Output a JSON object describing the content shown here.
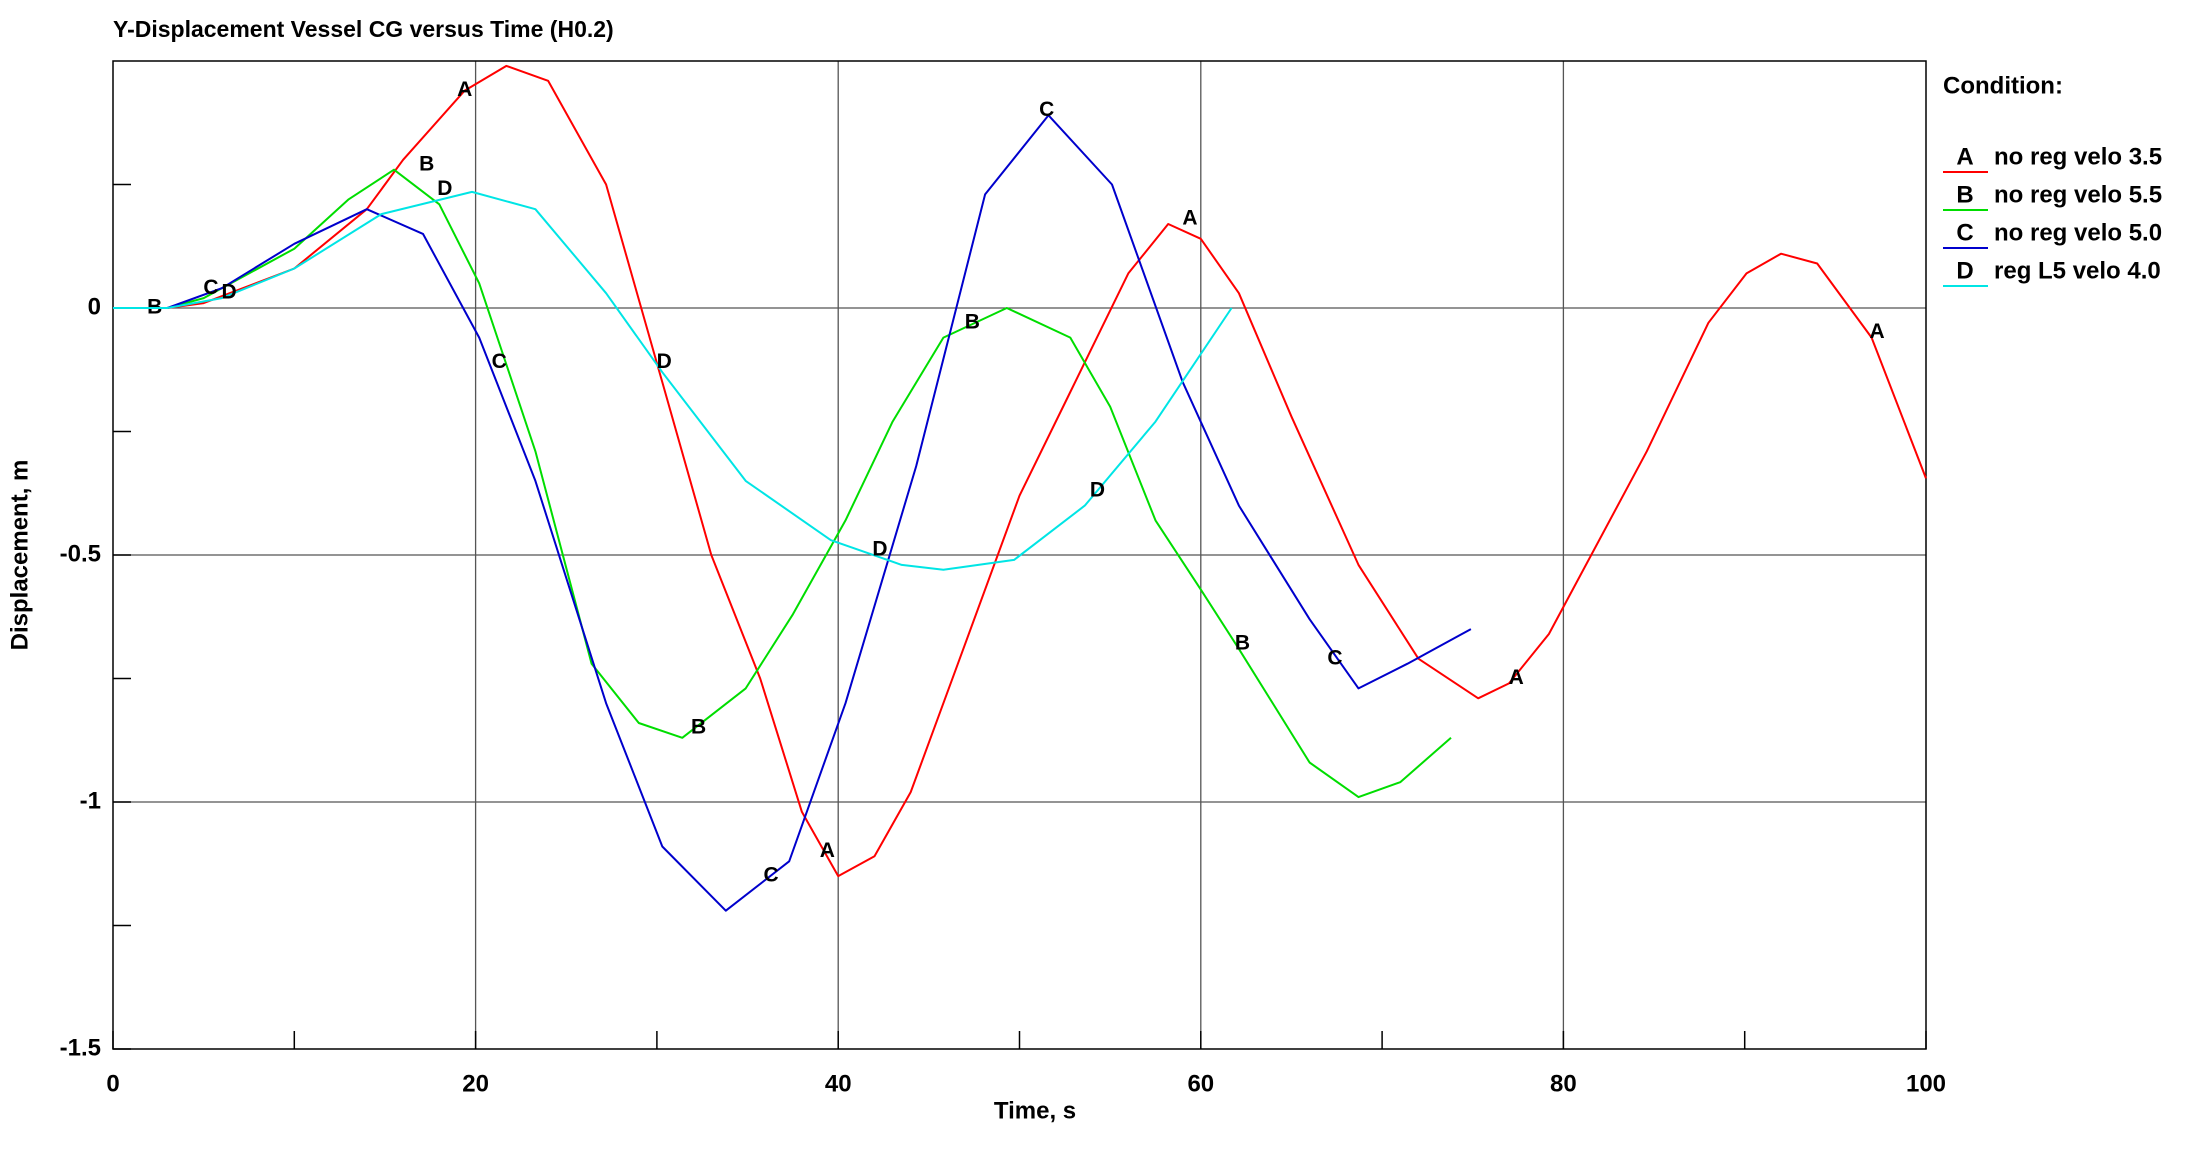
{
  "chart_data": {
    "type": "line",
    "title": "Y-Displacement Vessel CG versus Time (H0.2)",
    "x_label": "Time, s",
    "y_label": "Displacement, m",
    "legend_title": "Condition:",
    "xlim": [
      0,
      100
    ],
    "ylim": [
      -1.5,
      0.5
    ],
    "xticks": [
      0,
      20,
      40,
      60,
      80,
      100
    ],
    "yticks": [
      -1.5,
      -1,
      -0.5,
      0
    ],
    "xminor": [
      10,
      30,
      50,
      70,
      90
    ],
    "yminor": [
      -1.25,
      -0.75,
      -0.25,
      0.25
    ],
    "xgrid": [
      20,
      40,
      60,
      80
    ],
    "ygrid": [
      -1,
      -0.5,
      0
    ],
    "series": [
      {
        "name": "no reg velo 3.5",
        "letter": "A",
        "color": "#ff0000",
        "x": [
          0,
          3,
          5,
          10,
          14,
          16,
          19.4,
          21.7,
          24,
          27.2,
          30.3,
          33,
          35.7,
          38,
          40,
          42,
          44,
          46.6,
          50,
          52.8,
          56,
          58.2,
          60,
          62.1,
          65,
          68.7,
          72,
          75.3,
          77,
          79.2,
          84.6,
          88,
          90.1,
          92,
          94,
          97,
          100
        ],
        "values": [
          0,
          0,
          0.01,
          0.08,
          0.2,
          0.3,
          0.44,
          0.49,
          0.46,
          0.25,
          -0.15,
          -0.5,
          -0.75,
          -1.02,
          -1.15,
          -1.11,
          -0.98,
          -0.72,
          -0.38,
          -0.17,
          0.07,
          0.17,
          0.14,
          0.03,
          -0.22,
          -0.52,
          -0.71,
          -0.79,
          -0.76,
          -0.66,
          -0.29,
          -0.03,
          0.07,
          0.11,
          0.09,
          -0.06,
          -0.345
        ],
        "markers": [
          {
            "x": 19.4,
            "y": 0.44
          },
          {
            "x": 39.4,
            "y": -1.1
          },
          {
            "x": 59.4,
            "y": 0.18
          },
          {
            "x": 77.4,
            "y": -0.75
          },
          {
            "x": 97.3,
            "y": -0.05
          }
        ]
      },
      {
        "name": "no reg velo 5.5",
        "letter": "B",
        "color": "#00dd00",
        "x": [
          0,
          3,
          5,
          10,
          13,
          15.5,
          18,
          20.2,
          23.3,
          26.4,
          29,
          31.4,
          34.9,
          37.5,
          40.4,
          43,
          45.8,
          49.3,
          52.8,
          55,
          57.5,
          60,
          62.1,
          66,
          68.7,
          71,
          73.8
        ],
        "values": [
          0,
          0,
          0.02,
          0.12,
          0.22,
          0.28,
          0.21,
          0.05,
          -0.29,
          -0.72,
          -0.84,
          -0.87,
          -0.77,
          -0.62,
          -0.43,
          -0.23,
          -0.06,
          0.0,
          -0.06,
          -0.2,
          -0.43,
          -0.57,
          -0.69,
          -0.92,
          -0.99,
          -0.96,
          -0.87
        ],
        "markers": [
          {
            "x": 2.3,
            "y": 0.0
          },
          {
            "x": 17.3,
            "y": 0.29
          },
          {
            "x": 32.3,
            "y": -0.85
          },
          {
            "x": 47.4,
            "y": -0.03
          },
          {
            "x": 62.3,
            "y": -0.68
          }
        ]
      },
      {
        "name": "no reg velo 5.0",
        "letter": "C",
        "color": "#0000cc",
        "x": [
          0,
          3,
          6,
          10,
          14,
          17.1,
          20.2,
          23.3,
          27.2,
          30.3,
          33.8,
          37.3,
          40.4,
          44.3,
          48.1,
          51.6,
          55.1,
          59,
          62.1,
          66,
          68.7,
          71.4,
          74.9
        ],
        "values": [
          0,
          0,
          0.04,
          0.13,
          0.2,
          0.15,
          -0.06,
          -0.35,
          -0.8,
          -1.09,
          -1.22,
          -1.12,
          -0.8,
          -0.32,
          0.23,
          0.39,
          0.25,
          -0.15,
          -0.4,
          -0.63,
          -0.77,
          -0.72,
          -0.65
        ],
        "markers": [
          {
            "x": 5.4,
            "y": 0.04
          },
          {
            "x": 21.3,
            "y": -0.11
          },
          {
            "x": 36.3,
            "y": -1.15
          },
          {
            "x": 51.5,
            "y": 0.4
          },
          {
            "x": 67.4,
            "y": -0.71
          }
        ]
      },
      {
        "name": "reg L5 velo 4.0",
        "letter": "D",
        "color": "#00e5e5",
        "x": [
          0,
          3,
          6,
          10,
          14.8,
          19.8,
          23.3,
          27.2,
          30.3,
          34.9,
          39.6,
          43.5,
          45.8,
          49.7,
          53.6,
          57.5,
          61.7
        ],
        "values": [
          0,
          0,
          0.02,
          0.08,
          0.19,
          0.235,
          0.2,
          0.03,
          -0.13,
          -0.35,
          -0.47,
          -0.52,
          -0.53,
          -0.51,
          -0.4,
          -0.23,
          0.0
        ],
        "markers": [
          {
            "x": 6.4,
            "y": 0.03
          },
          {
            "x": 18.3,
            "y": 0.24
          },
          {
            "x": 30.4,
            "y": -0.11
          },
          {
            "x": 42.3,
            "y": -0.49
          },
          {
            "x": 54.3,
            "y": -0.37
          }
        ]
      }
    ]
  }
}
